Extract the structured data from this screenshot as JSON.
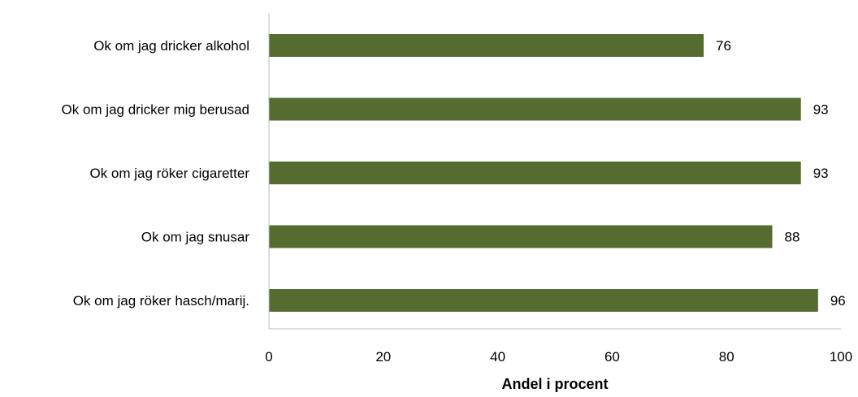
{
  "chart_data": {
    "type": "bar",
    "orientation": "horizontal",
    "categories": [
      "Ok om jag dricker alkohol",
      "Ok om jag dricker mig berusad",
      "Ok om jag röker cigaretter",
      "Ok om jag snusar",
      "Ok om jag röker hasch/marij."
    ],
    "values": [
      76,
      93,
      93,
      88,
      96
    ],
    "xlabel": "Andel i procent",
    "ylabel": "",
    "xlim": [
      0,
      100
    ],
    "xticks": [
      0,
      20,
      40,
      60,
      80,
      100
    ],
    "grid": false,
    "bar_color": "#556b2f",
    "data_labels": true
  }
}
